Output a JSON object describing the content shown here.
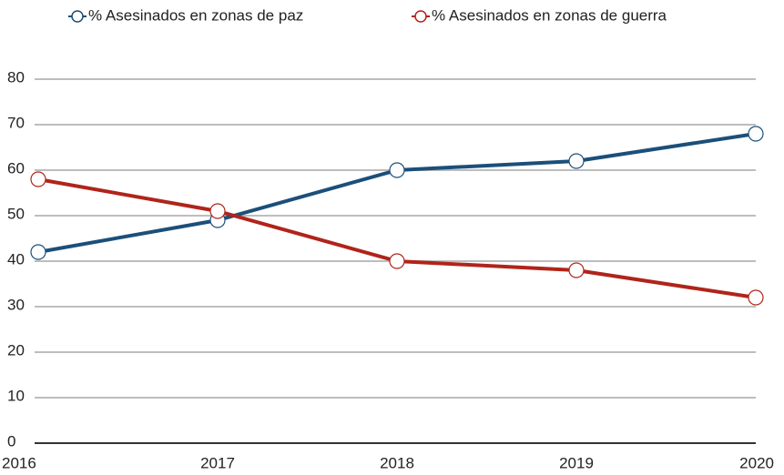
{
  "chart_data": {
    "type": "line",
    "categories": [
      "2016",
      "2017",
      "2018",
      "2019",
      "2020"
    ],
    "series": [
      {
        "name": "% Asesinados en zonas de paz",
        "color": "#1b4f7a",
        "values": [
          42,
          49,
          60,
          62,
          68
        ]
      },
      {
        "name": "% Asesinados en zonas de guerra",
        "color": "#b0241a",
        "values": [
          58,
          51,
          40,
          38,
          32
        ]
      }
    ],
    "ylim": [
      0,
      80
    ],
    "yticks": [
      0,
      10,
      20,
      30,
      40,
      50,
      60,
      70,
      80
    ],
    "grid": true,
    "legend": "top"
  }
}
